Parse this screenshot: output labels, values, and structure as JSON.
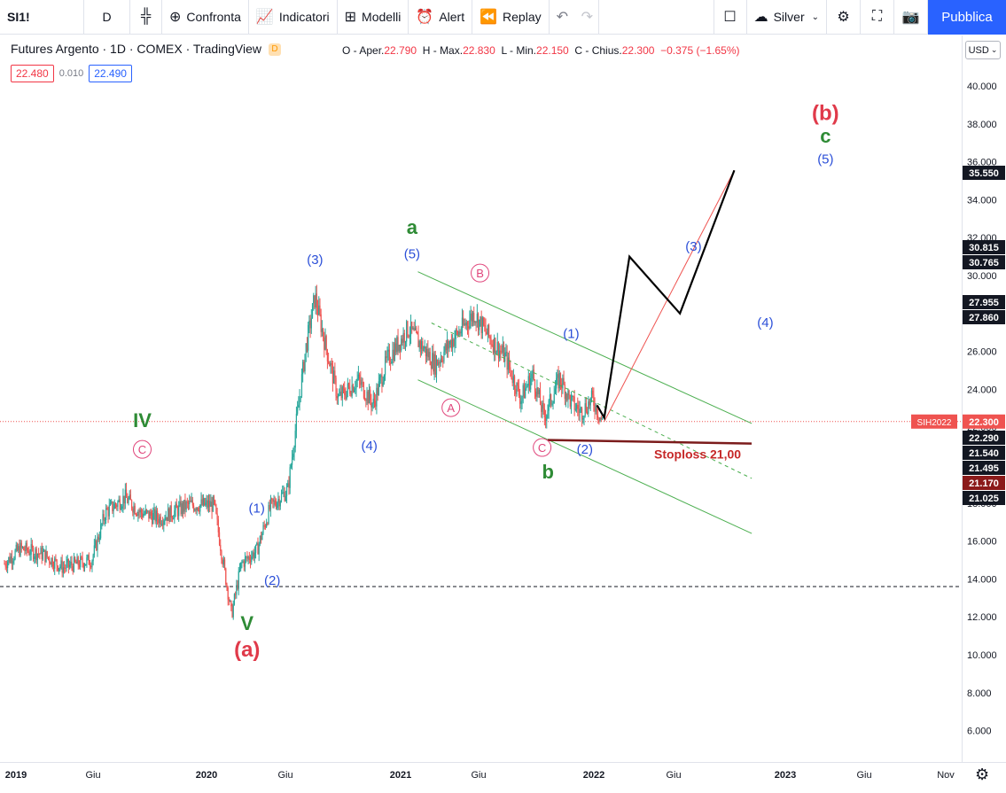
{
  "toolbar": {
    "symbol": "SI1!",
    "interval": "D",
    "compare": "Confronta",
    "indicators": "Indicatori",
    "templates": "Modelli",
    "alert": "Alert",
    "replay": "Replay",
    "layout_name": "Silver",
    "publish": "Pubblica"
  },
  "legend": {
    "title": "Futures Argento · 1D · COMEX · TradingView",
    "badge": "D",
    "open_label": "O - Aper.",
    "open": "22.790",
    "high_label": "H - Max.",
    "high": "22.830",
    "low_label": "L - Min.",
    "low": "22.150",
    "close_label": "C - Chius.",
    "close": "22.300",
    "change": "−0.375 (−1.65%)",
    "bid": "22.480",
    "spread": "0.010",
    "ask": "22.490"
  },
  "currency": "USD",
  "colors": {
    "up": "#26a69a",
    "down": "#ef5350",
    "accent": "#2962ff",
    "wave_green": "#2e8b35",
    "wave_red": "#e03a4a",
    "wave_blue": "#2b4fd8",
    "wave_pink": "#e0457b",
    "channel": "#4caf50"
  },
  "chart_data": {
    "type": "candlestick",
    "instrument": "SI1! Futures Argento (COMEX)",
    "timeframe": "1D",
    "y_range": [
      5,
      43
    ],
    "price_ticks": [
      "40.000",
      "38.000",
      "36.000",
      "34.000",
      "32.000",
      "30.000",
      "28.000",
      "26.000",
      "24.000",
      "22.000",
      "20.000",
      "18.000",
      "16.000",
      "14.000",
      "12.000",
      "10.000",
      "8.000",
      "6.000"
    ],
    "time_ticks": [
      "2019",
      "Giu",
      "2020",
      "Giu",
      "2021",
      "Giu",
      "2022",
      "Giu",
      "2023",
      "Giu",
      "Nov"
    ],
    "price_series": [
      {
        "t": 0.0,
        "p": 14.8
      },
      {
        "t": 0.08,
        "p": 15.6
      },
      {
        "t": 0.2,
        "p": 15.3
      },
      {
        "t": 0.3,
        "p": 14.6
      },
      {
        "t": 0.45,
        "p": 15.0
      },
      {
        "t": 0.52,
        "p": 17.5
      },
      {
        "t": 0.62,
        "p": 18.3
      },
      {
        "t": 0.7,
        "p": 17.5
      },
      {
        "t": 0.8,
        "p": 17.2
      },
      {
        "t": 0.95,
        "p": 17.9
      },
      {
        "t": 1.08,
        "p": 17.9
      },
      {
        "t": 1.17,
        "p": 12.1
      },
      {
        "t": 1.22,
        "p": 14.8
      },
      {
        "t": 1.3,
        "p": 15.5
      },
      {
        "t": 1.37,
        "p": 17.8
      },
      {
        "t": 1.46,
        "p": 18.7
      },
      {
        "t": 1.55,
        "p": 26.0
      },
      {
        "t": 1.6,
        "p": 28.9
      },
      {
        "t": 1.65,
        "p": 26.5
      },
      {
        "t": 1.72,
        "p": 23.5
      },
      {
        "t": 1.82,
        "p": 24.5
      },
      {
        "t": 1.9,
        "p": 23.2
      },
      {
        "t": 1.97,
        "p": 25.5
      },
      {
        "t": 2.08,
        "p": 27.2
      },
      {
        "t": 2.15,
        "p": 26.3
      },
      {
        "t": 2.22,
        "p": 25.3
      },
      {
        "t": 2.3,
        "p": 26.5
      },
      {
        "t": 2.42,
        "p": 28.0
      },
      {
        "t": 2.5,
        "p": 26.7
      },
      {
        "t": 2.58,
        "p": 25.7
      },
      {
        "t": 2.66,
        "p": 23.5
      },
      {
        "t": 2.72,
        "p": 24.8
      },
      {
        "t": 2.78,
        "p": 22.5
      },
      {
        "t": 2.86,
        "p": 24.6
      },
      {
        "t": 2.92,
        "p": 23.3
      },
      {
        "t": 2.97,
        "p": 22.8
      },
      {
        "t": 3.03,
        "p": 23.5
      },
      {
        "t": 3.08,
        "p": 22.3
      }
    ],
    "projection": [
      {
        "t": 3.09,
        "p": 22.5
      },
      {
        "t": 3.22,
        "p": 31.0
      },
      {
        "t": 3.48,
        "p": 28.0
      },
      {
        "t": 3.76,
        "p": 35.55
      }
    ],
    "projection_target_line": [
      {
        "t": 3.09,
        "p": 22.3
      },
      {
        "t": 3.76,
        "p": 35.55
      }
    ],
    "stoploss": {
      "price": 21.0,
      "label": "Stoploss 21,00"
    },
    "price_line": {
      "price": 22.3,
      "label": "SIH2022",
      "value": "22.300"
    },
    "support_line": {
      "price": 13.6
    },
    "axis_labels": [
      {
        "value": "35.550",
        "style": "dark"
      },
      {
        "value": "30.815",
        "style": "dark"
      },
      {
        "value": "30.765",
        "style": "dark"
      },
      {
        "value": "27.955",
        "style": "dark"
      },
      {
        "value": "27.860",
        "style": "dark"
      },
      {
        "value": "22.290",
        "style": "dark"
      },
      {
        "value": "21.540",
        "style": "dark"
      },
      {
        "value": "21.495",
        "style": "dark"
      },
      {
        "value": "21.170",
        "style": "maroon"
      },
      {
        "value": "21.025",
        "style": "dark"
      }
    ],
    "wave_labels": [
      {
        "text": "IV",
        "color": "green",
        "t": 0.71,
        "p": 22.0
      },
      {
        "text": "C",
        "color": "pink",
        "circle": true,
        "t": 0.71,
        "p": 20.6
      },
      {
        "text": "(1)",
        "color": "blue",
        "t": 1.3,
        "p": 17.5
      },
      {
        "text": "(2)",
        "color": "blue",
        "t": 1.38,
        "p": 13.7
      },
      {
        "text": "V",
        "color": "green",
        "t": 1.25,
        "p": 11.3
      },
      {
        "text": "(a)",
        "color": "red",
        "t": 1.25,
        "p": 9.9
      },
      {
        "text": "(3)",
        "color": "blue",
        "t": 1.6,
        "p": 30.6
      },
      {
        "text": "(4)",
        "color": "blue",
        "t": 1.88,
        "p": 20.8
      },
      {
        "text": "a",
        "color": "green",
        "t": 2.1,
        "p": 32.2
      },
      {
        "text": "(5)",
        "color": "blue",
        "t": 2.1,
        "p": 30.9
      },
      {
        "text": "B",
        "color": "pink",
        "circle": true,
        "t": 2.45,
        "p": 29.9
      },
      {
        "text": "A",
        "color": "pink",
        "circle": true,
        "t": 2.3,
        "p": 22.8
      },
      {
        "text": "(1)",
        "color": "blue",
        "t": 2.92,
        "p": 26.7
      },
      {
        "text": "C",
        "color": "pink",
        "circle": true,
        "t": 2.77,
        "p": 20.7
      },
      {
        "text": "b",
        "color": "green",
        "t": 2.8,
        "p": 19.3
      },
      {
        "text": "(2)",
        "color": "blue",
        "t": 2.99,
        "p": 20.6
      },
      {
        "text": "(3)",
        "color": "blue",
        "t": 3.55,
        "p": 31.3
      },
      {
        "text": "(4)",
        "color": "blue",
        "t": 3.92,
        "p": 27.3
      },
      {
        "text": "(b)",
        "color": "red",
        "t": 4.23,
        "p": 38.2
      },
      {
        "text": "c",
        "color": "green",
        "t": 4.23,
        "p": 37.0
      },
      {
        "text": "(5)",
        "color": "blue",
        "t": 4.23,
        "p": 35.9
      }
    ]
  }
}
